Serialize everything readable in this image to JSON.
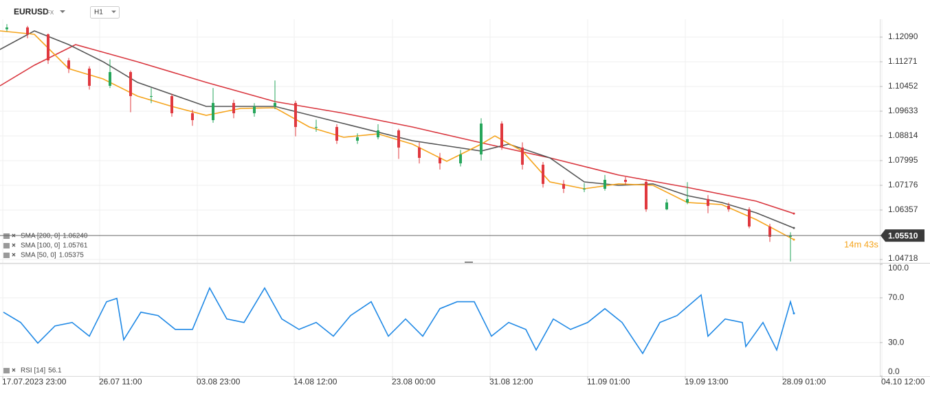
{
  "header": {
    "symbol": "EURUSD",
    "market": "FX",
    "interval": "H1"
  },
  "chart_data": [
    {
      "type": "candlestick",
      "x": [
        10,
        40,
        70,
        100,
        130,
        160,
        190,
        220,
        250,
        280,
        310,
        340,
        370,
        400,
        430,
        460,
        490,
        520,
        550,
        580,
        610,
        640,
        670,
        700,
        730,
        760,
        790,
        820,
        850,
        880,
        910,
        940,
        970,
        1000,
        1030,
        1060,
        1090,
        1120,
        1150
      ],
      "open": [
        1.1235,
        1.12409,
        1.12181,
        1.11317,
        1.11044,
        1.10475,
        1.1093,
        1.10134,
        1.10134,
        1.09565,
        1.09337,
        1.09906,
        1.09565,
        1.09792,
        1.09906,
        1.0911,
        1.0911,
        1.08655,
        1.08769,
        1.08996,
        1.08427,
        1.08086,
        1.07904,
        1.082,
        1.09224,
        1.08427,
        1.07859,
        1.07222,
        1.07062,
        1.07062,
        1.07358,
        1.0729,
        1.0638,
        1.06607,
        1.06721,
        1.06494,
        1.0638,
        1.05811,
        1.0547
      ],
      "high": [
        1.1252,
        1.1246,
        1.1221,
        1.114,
        1.1112,
        1.1135,
        1.1098,
        1.104,
        1.1021,
        1.0968,
        1.104,
        1.1001,
        1.099,
        1.1065,
        1.0998,
        1.0935,
        1.092,
        1.089,
        1.092,
        1.0905,
        1.086,
        1.0825,
        1.0835,
        1.094,
        1.093,
        1.086,
        1.0795,
        1.0735,
        1.0725,
        1.0752,
        1.0745,
        1.0738,
        1.0672,
        1.0728,
        1.0685,
        1.066,
        1.0645,
        1.059,
        1.0562
      ],
      "low": [
        1.1228,
        1.1205,
        1.112,
        1.109,
        1.1035,
        1.104,
        1.096,
        1.099,
        1.0945,
        1.0915,
        1.0925,
        1.094,
        1.0945,
        1.097,
        1.088,
        1.0895,
        1.0855,
        1.0855,
        1.087,
        1.0805,
        1.079,
        1.077,
        1.078,
        1.08,
        1.0835,
        1.077,
        1.071,
        1.0692,
        1.0695,
        1.07,
        1.072,
        1.063,
        1.0635,
        1.0655,
        1.0625,
        1.063,
        1.0575,
        1.053,
        1.0465
      ],
      "close": [
        1.12409,
        1.12181,
        1.11317,
        1.11044,
        1.10475,
        1.1093,
        1.10134,
        1.10134,
        1.09565,
        1.09337,
        1.09906,
        1.09565,
        1.09792,
        1.09906,
        1.0911,
        1.0911,
        1.08655,
        1.08769,
        1.08996,
        1.08427,
        1.08086,
        1.07904,
        1.082,
        1.09224,
        1.08427,
        1.07859,
        1.07222,
        1.07062,
        1.07062,
        1.07358,
        1.0729,
        1.0638,
        1.06607,
        1.06721,
        1.06494,
        1.0638,
        1.05811,
        1.0547,
        1.0551
      ],
      "up_color": "#26a65b",
      "down_color": "#e0383e",
      "series": [
        {
          "name": "SMA [200, 0]",
          "color": "#d9363e",
          "legend_value": {
            "value": 1.0624,
            "label": "1.06240"
          },
          "x": [
            0,
            50,
            110,
            200,
            300,
            400,
            500,
            600,
            700,
            800,
            900,
            1000,
            1100,
            1155
          ],
          "values": [
            1.10475,
            1.11157,
            1.1184,
            1.11271,
            1.10589,
            1.09952,
            1.09565,
            1.0911,
            1.08587,
            1.08086,
            1.07517,
            1.07108,
            1.06653,
            1.0624
          ]
        },
        {
          "name": "SMA [100, 0]",
          "color": "#555555",
          "legend_value": {
            "value": 1.05761,
            "label": "1.05761"
          },
          "x": [
            0,
            50,
            100,
            150,
            200,
            300,
            400,
            500,
            600,
            700,
            740,
            800,
            850,
            900,
            950,
            1000,
            1050,
            1100,
            1155
          ],
          "values": [
            1.1168,
            1.12295,
            1.1184,
            1.11271,
            1.10589,
            1.09792,
            1.09792,
            1.09224,
            1.08655,
            1.08314,
            1.08541,
            1.08086,
            1.0729,
            1.07176,
            1.07222,
            1.06835,
            1.06607,
            1.06266,
            1.05761
          ]
        },
        {
          "name": "SMA [50, 0]",
          "color": "#f5a31a",
          "legend_value": {
            "value": 1.05375,
            "label": "1.05375"
          },
          "x": [
            0,
            50,
            100,
            150,
            200,
            250,
            300,
            350,
            400,
            450,
            500,
            550,
            600,
            650,
            700,
            720,
            760,
            800,
            850,
            900,
            950,
            1000,
            1050,
            1100,
            1155
          ],
          "values": [
            1.12295,
            1.12181,
            1.11044,
            1.10702,
            1.10134,
            1.09792,
            1.09497,
            1.09724,
            1.09747,
            1.0911,
            1.08769,
            1.08882,
            1.08541,
            1.07972,
            1.08541,
            1.08814,
            1.08314,
            1.0729,
            1.07062,
            1.07222,
            1.07176,
            1.06607,
            1.06539,
            1.06039,
            1.05375
          ]
        }
      ],
      "current_price": {
        "value": 1.0551,
        "label": "1.05510"
      },
      "countdown": "14m 43s",
      "ylim": [
        1.04604,
        1.12682
      ],
      "yticks": [
        {
          "value": 1.1209,
          "label": "1.12090"
        },
        1.11271,
        1.10452,
        1.09633,
        1.08814,
        1.07995,
        1.07176,
        1.06357,
        1.04718
      ],
      "grid": true
    },
    {
      "type": "line",
      "series": [
        {
          "name": "RSI [14]",
          "color": "#1e88e5",
          "legend_value": 56.1,
          "x": [
            5,
            30,
            55,
            80,
            105,
            130,
            155,
            170,
            180,
            205,
            230,
            255,
            280,
            305,
            330,
            355,
            385,
            410,
            435,
            460,
            485,
            510,
            540,
            565,
            590,
            615,
            640,
            665,
            690,
            715,
            740,
            765,
            780,
            805,
            830,
            855,
            880,
            905,
            935,
            960,
            985,
            1020,
            1030,
            1055,
            1080,
            1085,
            1110,
            1130,
            1150,
            1155
          ],
          "values": [
            57.2,
            48.0,
            29.5,
            44.9,
            48.0,
            35.7,
            66.5,
            69.5,
            32.6,
            57.2,
            54.2,
            41.8,
            41.8,
            78.8,
            51.1,
            48.0,
            78.8,
            51.1,
            41.8,
            48.0,
            35.7,
            54.2,
            66.5,
            35.7,
            51.1,
            35.7,
            60.3,
            66.5,
            66.5,
            35.7,
            48.0,
            41.8,
            23.4,
            51.1,
            41.8,
            48.0,
            60.3,
            48.0,
            20.3,
            48.0,
            54.2,
            72.6,
            35.7,
            51.1,
            48.0,
            26.5,
            48.0,
            23.4,
            66.5,
            56.1
          ]
        }
      ],
      "xlim": [
        0,
        1275
      ],
      "xticks": [
        {
          "value": 4,
          "label": "17.07.2023 23:00"
        },
        {
          "value": 145,
          "label": "26.07 11:00"
        },
        {
          "value": 287,
          "label": "03.08 23:00"
        },
        {
          "value": 428,
          "label": "14.08 12:00"
        },
        {
          "value": 571,
          "label": "23.08 00:00"
        },
        {
          "value": 713,
          "label": "31.08 12:00"
        },
        {
          "value": 855,
          "label": "11.09 01:00"
        },
        {
          "value": 997,
          "label": "19.09 13:00"
        },
        {
          "value": 1139,
          "label": "28.09 01:00"
        },
        {
          "value": 1283,
          "label": "04.10 12:00"
        }
      ],
      "ylim": [
        0,
        100
      ],
      "yticks": [
        {
          "value": 100,
          "label": "100.0"
        },
        {
          "value": 70,
          "label": "70.0"
        },
        {
          "value": 30,
          "label": "30.0"
        },
        {
          "value": 0,
          "label": "0.0"
        }
      ],
      "grid": true
    }
  ]
}
